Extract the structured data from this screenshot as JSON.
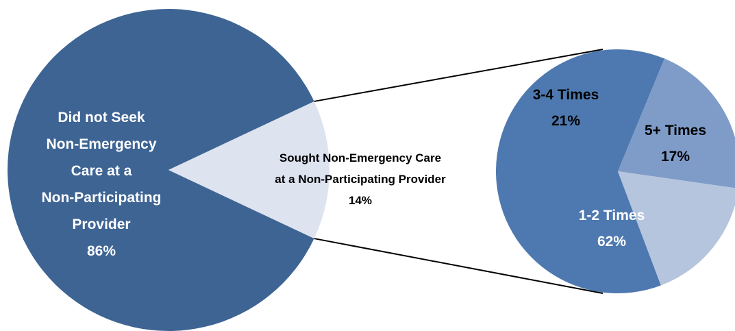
{
  "chart_data": [
    {
      "type": "pie",
      "title": "",
      "categories": [
        "Did not Seek Non-Emergency Care at a Non-Participating Provider",
        "Sought Non-Emergency Care at a Non-Participating Provider"
      ],
      "values": [
        86,
        14
      ],
      "colors": [
        "#3d6493",
        "#dde3ef"
      ],
      "labels": [
        {
          "lines": [
            "Did not Seek",
            "Non-Emergency",
            "Care at a",
            "Non-Participating",
            "Provider"
          ],
          "pct": "86%",
          "color": "#ffffff"
        },
        {
          "lines": [
            "Sought Non-Emergency Care",
            "at a Non-Participating Provider"
          ],
          "pct": "14%",
          "color": "#000000"
        }
      ]
    },
    {
      "type": "pie",
      "title": "",
      "categories": [
        "1-2 Times",
        "3-4 Times",
        "5+ Times"
      ],
      "values": [
        62,
        21,
        17
      ],
      "colors": [
        "#4e79b0",
        "#7f9cc8",
        "#b5c5de"
      ],
      "labels": [
        {
          "lines": [
            "1-2 Times"
          ],
          "pct": "62%",
          "color": "#ffffff"
        },
        {
          "lines": [
            "3-4 Times"
          ],
          "pct": "21%",
          "color": "#000000"
        },
        {
          "lines": [
            "5+ Times"
          ],
          "pct": "17%",
          "color": "#000000"
        }
      ]
    }
  ]
}
